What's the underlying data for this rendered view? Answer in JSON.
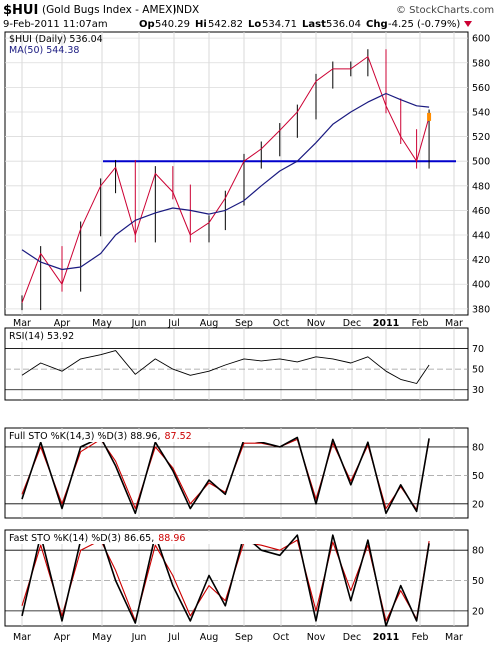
{
  "header": {
    "symbol": "$HUI",
    "description": "(Gold Bugs Index - AMEX)",
    "exchange": "INDX",
    "watermark": "© StockCharts.com",
    "date": "9-Feb-2011 11:07am",
    "open_label": "Op",
    "open": "540.29",
    "high_label": "Hi",
    "high": "542.82",
    "low_label": "Lo",
    "low": "534.71",
    "last_label": "Last",
    "last": "536.04",
    "change_label": "Chg",
    "change": "-4.25 (-0.79%)"
  },
  "colors": {
    "price_up": "#000000",
    "price_down": "#cc0033",
    "ma": "#1a1a80",
    "support_line": "#0000cc",
    "k_line": "#000000",
    "d_line": "#cc0000",
    "down_arrow": "#cc0033",
    "last_marker": "#ff8c00"
  },
  "chart_data": [
    {
      "type": "line",
      "panel": "price",
      "legend": [
        "$HUI (Daily) 536.04",
        "MA(50) 544.38"
      ],
      "x_ticks": [
        "Mar",
        "Apr",
        "May",
        "Jun",
        "Jul",
        "Aug",
        "Sep",
        "Oct",
        "Nov",
        "Dec",
        "2011",
        "Feb",
        "Mar"
      ],
      "y_ticks": [
        380,
        400,
        420,
        440,
        460,
        480,
        500,
        520,
        540,
        560,
        580,
        600
      ],
      "ylim": [
        375,
        605
      ],
      "horizontal_line": 500,
      "series": [
        {
          "name": "$HUI (Daily)",
          "x": [
            "Mar 1",
            "Mar 15",
            "Mar 31",
            "Apr 15",
            "Apr 30",
            "May 12",
            "May 28",
            "Jun 15",
            "Jun 30",
            "Jul 15",
            "Jul 31",
            "Aug 15",
            "Aug 31",
            "Sep 15",
            "Sep 30",
            "Oct 15",
            "Oct 31",
            "Nov 15",
            "Nov 30",
            "Dec 15",
            "Dec 31",
            "Jan 14",
            "Jan 28",
            "Feb 9"
          ],
          "values": [
            385,
            425,
            400,
            445,
            480,
            495,
            440,
            490,
            475,
            440,
            450,
            470,
            500,
            510,
            525,
            540,
            565,
            575,
            575,
            585,
            545,
            520,
            500,
            536
          ]
        },
        {
          "name": "MA(50)",
          "x": [
            "Mar 1",
            "Mar 15",
            "Mar 31",
            "Apr 15",
            "Apr 30",
            "May 12",
            "May 28",
            "Jun 15",
            "Jun 30",
            "Jul 15",
            "Jul 31",
            "Aug 15",
            "Aug 31",
            "Sep 15",
            "Sep 30",
            "Oct 15",
            "Oct 31",
            "Nov 15",
            "Nov 30",
            "Dec 15",
            "Dec 31",
            "Jan 14",
            "Jan 28",
            "Feb 9"
          ],
          "values": [
            428,
            418,
            412,
            414,
            425,
            440,
            452,
            458,
            462,
            460,
            457,
            460,
            468,
            480,
            492,
            500,
            515,
            530,
            540,
            548,
            555,
            550,
            545,
            544
          ]
        }
      ]
    },
    {
      "type": "line",
      "panel": "rsi",
      "legend": [
        "RSI(14) 53.92"
      ],
      "y_ticks": [
        30,
        50,
        70
      ],
      "ylim": [
        20,
        90
      ],
      "series": [
        {
          "name": "RSI(14)",
          "x": [
            "Mar 1",
            "Mar 15",
            "Mar 31",
            "Apr 15",
            "Apr 30",
            "May 12",
            "May 28",
            "Jun 15",
            "Jun 30",
            "Jul 15",
            "Jul 31",
            "Aug 15",
            "Aug 31",
            "Sep 15",
            "Sep 30",
            "Oct 15",
            "Oct 31",
            "Nov 15",
            "Nov 30",
            "Dec 15",
            "Dec 31",
            "Jan 14",
            "Jan 28",
            "Feb 9"
          ],
          "values": [
            44,
            56,
            48,
            60,
            64,
            68,
            45,
            60,
            50,
            44,
            48,
            54,
            60,
            58,
            60,
            57,
            62,
            60,
            56,
            62,
            48,
            40,
            36,
            54
          ]
        }
      ]
    },
    {
      "type": "line",
      "panel": "full_sto",
      "legend": [
        "Full STO %K(14,3) %D(3) 88.96,",
        "87.52"
      ],
      "y_ticks": [
        20,
        50,
        80
      ],
      "ylim": [
        5,
        100
      ],
      "series": [
        {
          "name": "%K",
          "x": [
            "Mar 1",
            "Mar 15",
            "Mar 31",
            "Apr 15",
            "Apr 30",
            "May 12",
            "May 28",
            "Jun 15",
            "Jun 30",
            "Jul 15",
            "Jul 31",
            "Aug 15",
            "Aug 31",
            "Sep 15",
            "Sep 30",
            "Oct 15",
            "Oct 31",
            "Nov 15",
            "Nov 30",
            "Dec 15",
            "Dec 31",
            "Jan 14",
            "Jan 28",
            "Feb 9"
          ],
          "values": [
            25,
            85,
            15,
            80,
            90,
            60,
            10,
            85,
            55,
            15,
            45,
            30,
            88,
            85,
            80,
            90,
            20,
            88,
            40,
            85,
            10,
            40,
            12,
            89
          ]
        },
        {
          "name": "%D",
          "x": [
            "Mar 1",
            "Mar 15",
            "Mar 31",
            "Apr 15",
            "Apr 30",
            "May 12",
            "May 28",
            "Jun 15",
            "Jun 30",
            "Jul 15",
            "Jul 31",
            "Aug 15",
            "Aug 31",
            "Sep 15",
            "Sep 30",
            "Oct 15",
            "Oct 31",
            "Nov 15",
            "Nov 30",
            "Dec 15",
            "Dec 31",
            "Jan 14",
            "Jan 28",
            "Feb 9"
          ],
          "values": [
            30,
            80,
            20,
            75,
            88,
            65,
            15,
            80,
            58,
            20,
            42,
            32,
            84,
            84,
            80,
            88,
            25,
            84,
            44,
            82,
            15,
            38,
            14,
            87.5
          ]
        }
      ]
    },
    {
      "type": "line",
      "panel": "fast_sto",
      "legend": [
        "Fast STO %K(14) %D(3) 86.65,",
        "88.96"
      ],
      "y_ticks": [
        20,
        50,
        80
      ],
      "ylim": [
        5,
        100
      ],
      "x_ticks": [
        "Mar",
        "Apr",
        "May",
        "Jun",
        "Jul",
        "Aug",
        "Sep",
        "Oct",
        "Nov",
        "Dec",
        "2011",
        "Feb",
        "Mar"
      ],
      "series": [
        {
          "name": "%K",
          "x": [
            "Mar 1",
            "Mar 15",
            "Mar 31",
            "Apr 15",
            "Apr 30",
            "May 12",
            "May 28",
            "Jun 15",
            "Jun 30",
            "Jul 15",
            "Jul 31",
            "Aug 15",
            "Aug 31",
            "Sep 15",
            "Sep 30",
            "Oct 15",
            "Oct 31",
            "Nov 15",
            "Nov 30",
            "Dec 15",
            "Dec 31",
            "Jan 14",
            "Jan 28",
            "Feb 9"
          ],
          "values": [
            15,
            95,
            10,
            90,
            95,
            50,
            8,
            95,
            45,
            10,
            55,
            25,
            95,
            80,
            75,
            95,
            10,
            95,
            30,
            90,
            5,
            45,
            10,
            86.7
          ]
        },
        {
          "name": "%D",
          "x": [
            "Mar 1",
            "Mar 15",
            "Mar 31",
            "Apr 15",
            "Apr 30",
            "May 12",
            "May 28",
            "Jun 15",
            "Jun 30",
            "Jul 15",
            "Jul 31",
            "Aug 15",
            "Aug 31",
            "Sep 15",
            "Sep 30",
            "Oct 15",
            "Oct 31",
            "Nov 15",
            "Nov 30",
            "Dec 15",
            "Dec 31",
            "Jan 14",
            "Jan 28",
            "Feb 9"
          ],
          "values": [
            25,
            85,
            15,
            80,
            90,
            60,
            10,
            85,
            55,
            15,
            45,
            30,
            88,
            85,
            80,
            90,
            20,
            88,
            40,
            85,
            10,
            40,
            12,
            89
          ]
        }
      ]
    }
  ]
}
